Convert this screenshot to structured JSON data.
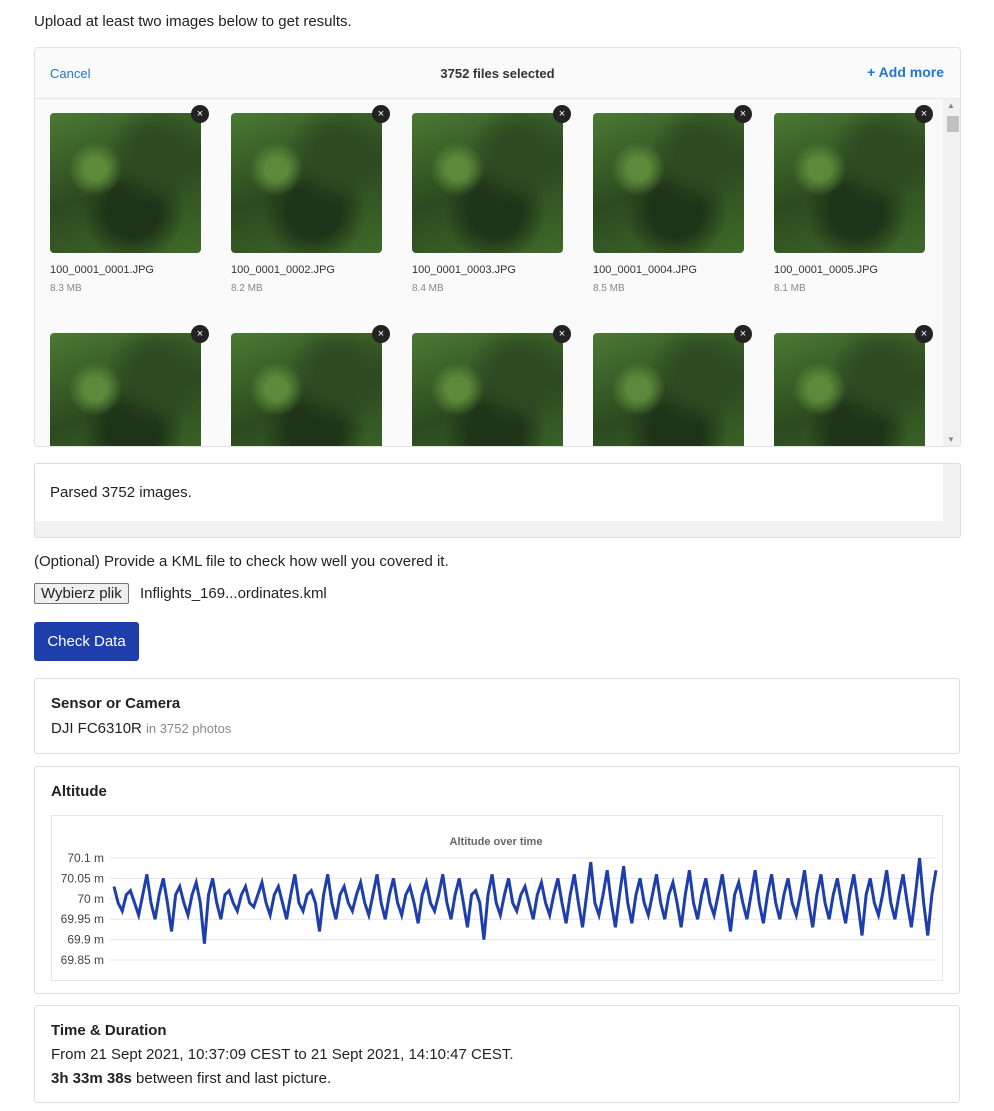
{
  "intro": "Upload at least two images below to get results.",
  "uploader": {
    "cancel": "Cancel",
    "count": "3752 files selected",
    "add_more": "+ Add more",
    "files": [
      {
        "name": "100_0001_0001.JPG",
        "size": "8.3 MB"
      },
      {
        "name": "100_0001_0002.JPG",
        "size": "8.2 MB"
      },
      {
        "name": "100_0001_0003.JPG",
        "size": "8.4 MB"
      },
      {
        "name": "100_0001_0004.JPG",
        "size": "8.5 MB"
      },
      {
        "name": "100_0001_0005.JPG",
        "size": "8.1 MB"
      }
    ],
    "remove_glyph": "×"
  },
  "log": "Parsed 3752 images.",
  "kml": {
    "prompt": "(Optional) Provide a KML file to check how well you covered it.",
    "button": "Wybierz plik",
    "filename": "Inflights_169...ordinates.kml"
  },
  "check_button": "Check Data",
  "sensor": {
    "title": "Sensor or Camera",
    "name": "DJI FC6310R",
    "detail": "in 3752 photos"
  },
  "altitude": {
    "title": "Altitude"
  },
  "chart_data": {
    "type": "line",
    "title": "Altitude over time",
    "ylim": [
      69.85,
      70.1
    ],
    "grid": true,
    "yticks": [
      "70.1 m",
      "70.05 m",
      "70 m",
      "69.95 m",
      "69.9 m",
      "69.85 m"
    ],
    "series_color": "#1e3fab",
    "values": [
      70.03,
      69.97,
      70.02,
      69.96,
      70.06,
      69.95,
      70.05,
      69.92,
      70.03,
      69.96,
      70.04,
      69.89,
      70.05,
      69.95,
      70.02,
      69.97,
      70.03,
      69.98,
      70.04,
      69.96,
      70.03,
      69.95,
      70.06,
      69.97,
      70.02,
      69.92,
      70.06,
      69.95,
      70.03,
      69.97,
      70.04,
      69.96,
      70.06,
      69.95,
      70.05,
      69.96,
      70.03,
      69.94,
      70.04,
      69.97,
      70.06,
      69.95,
      70.05,
      69.93,
      70.02,
      69.9,
      70.06,
      69.96,
      70.05,
      69.97,
      70.03,
      69.95,
      70.04,
      69.96,
      70.05,
      69.94,
      70.06,
      69.93,
      70.09,
      69.96,
      70.07,
      69.93,
      70.08,
      69.94,
      70.05,
      69.96,
      70.06,
      69.95,
      70.04,
      69.93,
      70.07,
      69.95,
      70.05,
      69.96,
      70.06,
      69.92,
      70.04,
      69.95,
      70.07,
      69.94,
      70.06,
      69.95,
      70.05,
      69.96,
      70.07,
      69.93,
      70.06,
      69.95,
      70.05,
      69.94,
      70.06,
      69.91,
      70.05,
      69.96,
      70.07,
      69.95,
      70.06,
      69.93,
      70.1,
      69.91,
      70.07
    ]
  },
  "time": {
    "title": "Time & Duration",
    "range": "From 21 Sept 2021, 10:37:09 CEST to 21 Sept 2021, 14:10:47 CEST.",
    "duration": "3h 33m 38s",
    "duration_suffix": " between first and last picture."
  }
}
